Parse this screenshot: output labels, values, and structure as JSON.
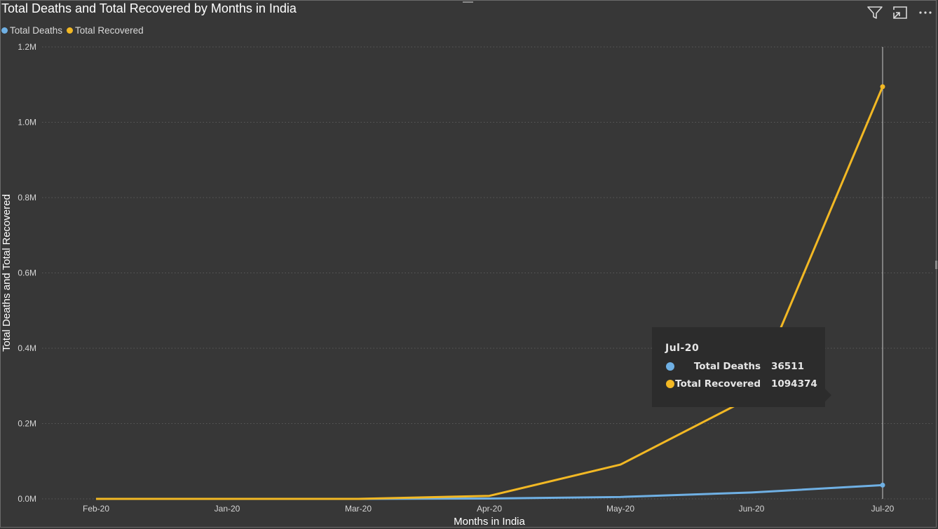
{
  "chart_data": {
    "type": "line",
    "title": "Total Deaths and Total Recovered by Months in India",
    "xlabel": "Months in India",
    "ylabel": "Total Deaths and Total Recovered",
    "categories": [
      "Feb-20",
      "Jan-20",
      "Mar-20",
      "Apr-20",
      "May-20",
      "Jun-20",
      "Jul-20"
    ],
    "ylim": [
      0,
      1200000
    ],
    "y_ticks": [
      0,
      200000,
      400000,
      600000,
      800000,
      1000000,
      1200000
    ],
    "y_tick_labels": [
      "0.0M",
      "0.2M",
      "0.4M",
      "0.6M",
      "0.8M",
      "1.0M",
      "1.2M"
    ],
    "grid": "horizontal dotted",
    "legend_position": "top-left",
    "series": [
      {
        "name": "Total Deaths",
        "color": "#6fb0e4",
        "values": [
          0,
          0,
          0,
          1000,
          5000,
          17000,
          36511
        ]
      },
      {
        "name": "Total Recovered",
        "color": "#f2b824",
        "values": [
          0,
          0,
          100,
          8000,
          91000,
          270000,
          1094374
        ]
      }
    ],
    "highlight": {
      "category": "Jul-20",
      "rows": [
        {
          "label": "Total Deaths",
          "value": "36511",
          "color": "#6fb0e4"
        },
        {
          "label": "Total Recovered",
          "value": "1094374",
          "color": "#f2b824"
        }
      ]
    }
  },
  "icons": {
    "filter": "filter-icon",
    "focus": "focus-mode-icon",
    "more": "more-options-icon"
  }
}
